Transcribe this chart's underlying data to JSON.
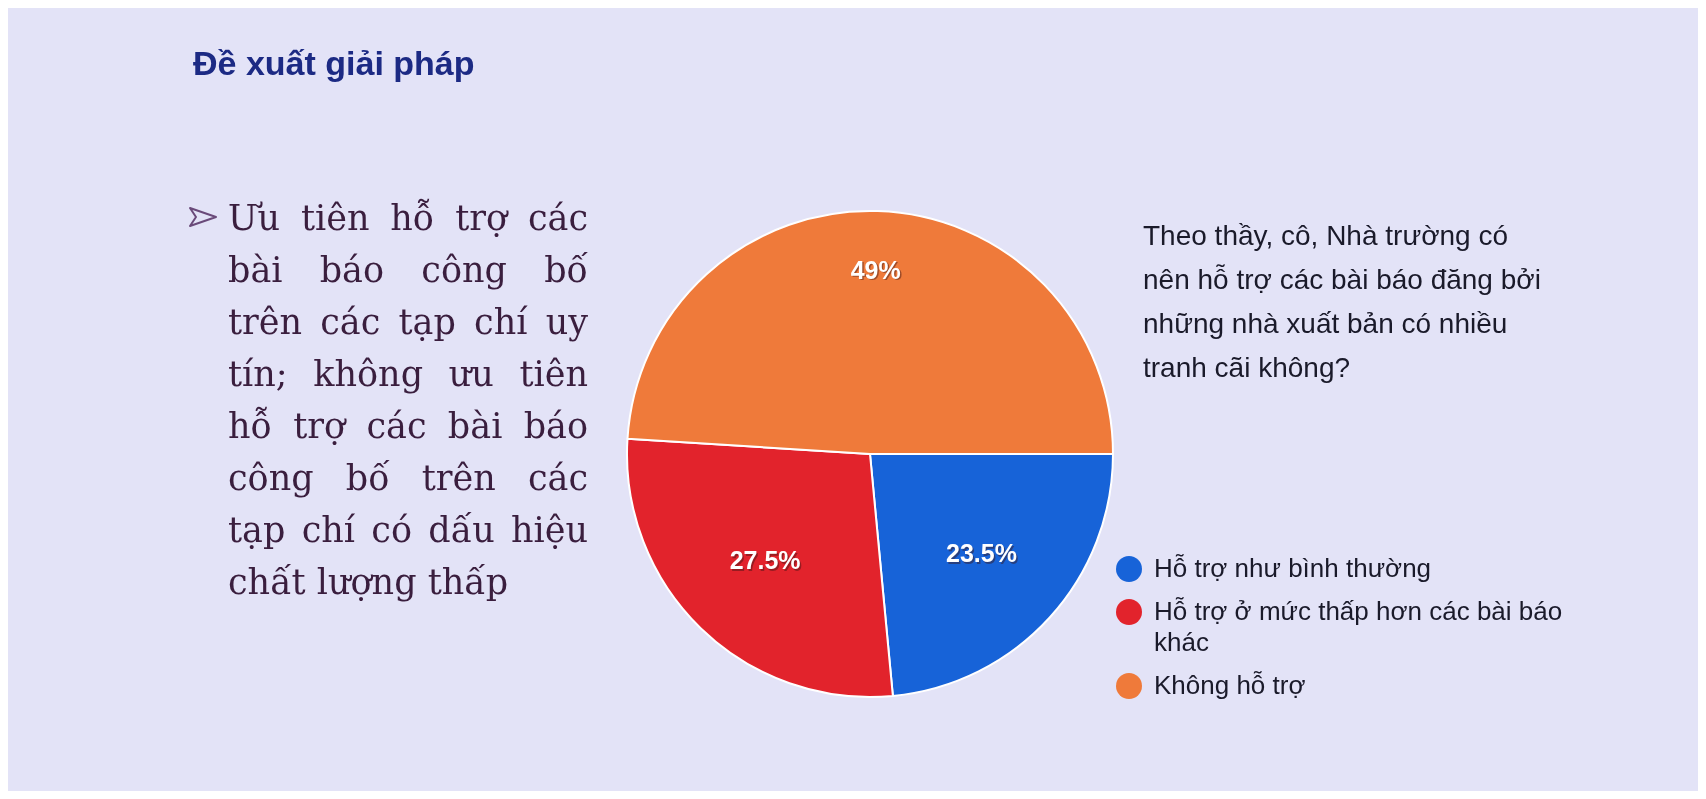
{
  "chart_data": {
    "type": "pie",
    "title": "Đề xuất giải pháp",
    "subtitle": "Theo thầy, cô, Nhà trường có nên hỗ trợ các bài báo đăng bởi những nhà xuất bản có nhiều tranh cãi không?",
    "annotations": [
      "Ưu tiên hỗ trợ các bài báo công bố trên các tạp chí uy tín; không ưu tiên hỗ trợ các bài báo công bố trên các tạp chí có dấu hiệu chất lượng thấp"
    ],
    "categories": [
      "Hỗ trợ như bình thường",
      "Hỗ trợ ở mức thấp hơn các bài báo khác",
      "Không hỗ trợ"
    ],
    "values": [
      23.5,
      27.5,
      49
    ],
    "value_labels": [
      "23.5%",
      "27.5%",
      "49%"
    ],
    "colors": [
      "#1763d8",
      "#e2232c",
      "#ef7a3a"
    ],
    "legend": "right"
  }
}
